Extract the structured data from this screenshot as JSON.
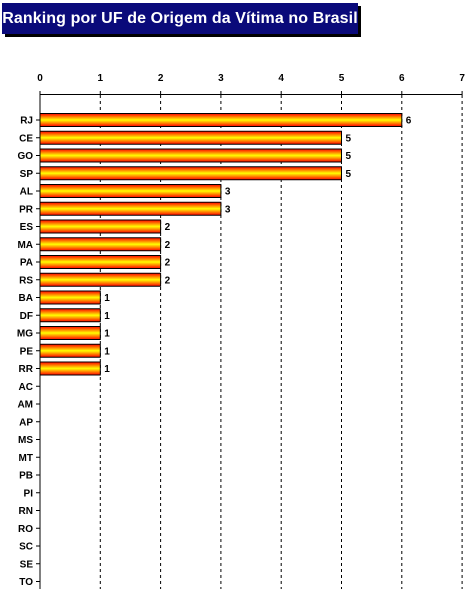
{
  "chart_data": {
    "type": "bar",
    "orientation": "horizontal",
    "title": "Ranking por UF de Origem da Vítima no Brasil",
    "categories": [
      "RJ",
      "CE",
      "GO",
      "SP",
      "AL",
      "PR",
      "ES",
      "MA",
      "PA",
      "RS",
      "BA",
      "DF",
      "MG",
      "PE",
      "RR",
      "AC",
      "AM",
      "AP",
      "MS",
      "MT",
      "PB",
      "PI",
      "RN",
      "RO",
      "SC",
      "SE",
      "TO"
    ],
    "values": [
      6,
      5,
      5,
      5,
      3,
      3,
      2,
      2,
      2,
      2,
      1,
      1,
      1,
      1,
      1,
      0,
      0,
      0,
      0,
      0,
      0,
      0,
      0,
      0,
      0,
      0,
      0
    ],
    "xticks": [
      "0",
      "1",
      "2",
      "3",
      "4",
      "5",
      "6",
      "7"
    ],
    "xlim": [
      0,
      7
    ],
    "xaxis_position": "top",
    "grid": "vertical dashed",
    "data_labels": [
      "6",
      "5",
      "5",
      "5",
      "3",
      "3",
      "2",
      "2",
      "2",
      "2",
      "1",
      "1",
      "1",
      "1",
      "1",
      "",
      "",
      "",
      "",
      "",
      "",
      "",
      "",
      "",
      "",
      "",
      ""
    ],
    "bar_color_edge": "#ff0000",
    "bar_color_center": "#ffff00",
    "title_bg": "#0a0a7a"
  }
}
